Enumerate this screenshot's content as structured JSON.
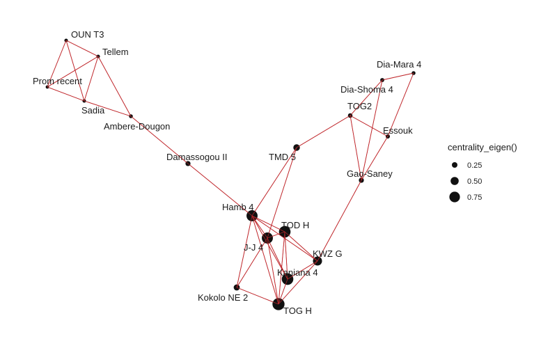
{
  "colors": {
    "edge": "#c0282d",
    "node": "#111111",
    "node_center": "#c0282d",
    "text": "#1a1a1a"
  },
  "nodes": [
    {
      "id": "oun",
      "label": "OUN T3",
      "centrality": 0.05
    },
    {
      "id": "tellem",
      "label": "Tellem",
      "centrality": 0.05
    },
    {
      "id": "prom",
      "label": "Prom recent",
      "centrality": 0.03
    },
    {
      "id": "sadia",
      "label": "Sadia",
      "centrality": 0.05
    },
    {
      "id": "ambere",
      "label": "Ambere-Dougon",
      "centrality": 0.08
    },
    {
      "id": "damassogou",
      "label": "Damassogou II",
      "centrality": 0.2
    },
    {
      "id": "tmd5",
      "label": "TMD 5",
      "centrality": 0.35
    },
    {
      "id": "togII",
      "label": "TOG2",
      "centrality": 0.15
    },
    {
      "id": "diashoma",
      "label": "Dia-Shoma 4",
      "centrality": 0.1
    },
    {
      "id": "diamara",
      "label": "Dia-Mara 4",
      "centrality": 0.08
    },
    {
      "id": "essouk",
      "label": "Essouk",
      "centrality": 0.12
    },
    {
      "id": "gaosaney",
      "label": "Gao-Saney",
      "centrality": 0.2
    },
    {
      "id": "hamb4",
      "label": "Hamb 4",
      "centrality": 0.8
    },
    {
      "id": "todh",
      "label": "TOD H",
      "centrality": 0.85
    },
    {
      "id": "jj4",
      "label": "J-J 4",
      "centrality": 0.8
    },
    {
      "id": "kwzg",
      "label": "KWZ G",
      "centrality": 0.6
    },
    {
      "id": "kaniana",
      "label": "Kaniana 4",
      "centrality": 0.85
    },
    {
      "id": "kokolo",
      "label": "Kokolo NE 2",
      "centrality": 0.3
    },
    {
      "id": "togh",
      "label": "TOG H",
      "centrality": 0.9
    }
  ],
  "edges": [
    [
      "oun",
      "tellem"
    ],
    [
      "oun",
      "prom"
    ],
    [
      "oun",
      "sadia"
    ],
    [
      "tellem",
      "sadia"
    ],
    [
      "tellem",
      "prom"
    ],
    [
      "tellem",
      "ambere"
    ],
    [
      "prom",
      "sadia"
    ],
    [
      "sadia",
      "ambere"
    ],
    [
      "ambere",
      "damassogou"
    ],
    [
      "damassogou",
      "hamb4"
    ],
    [
      "tmd5",
      "hamb4"
    ],
    [
      "tmd5",
      "togII"
    ],
    [
      "tmd5",
      "jj4"
    ],
    [
      "togII",
      "diashoma"
    ],
    [
      "togII",
      "essouk"
    ],
    [
      "togII",
      "gaosaney"
    ],
    [
      "diashoma",
      "diamara"
    ],
    [
      "diashoma",
      "gaosaney"
    ],
    [
      "diamara",
      "essouk"
    ],
    [
      "essouk",
      "gaosaney"
    ],
    [
      "gaosaney",
      "kwzg"
    ],
    [
      "hamb4",
      "todh"
    ],
    [
      "hamb4",
      "jj4"
    ],
    [
      "hamb4",
      "kwzg"
    ],
    [
      "hamb4",
      "kaniana"
    ],
    [
      "hamb4",
      "togh"
    ],
    [
      "hamb4",
      "kokolo"
    ],
    [
      "todh",
      "jj4"
    ],
    [
      "todh",
      "kaniana"
    ],
    [
      "todh",
      "togh"
    ],
    [
      "todh",
      "kwzg"
    ],
    [
      "jj4",
      "kaniana"
    ],
    [
      "jj4",
      "togh"
    ],
    [
      "jj4",
      "kokolo"
    ],
    [
      "kwzg",
      "kaniana"
    ],
    [
      "kwzg",
      "togh"
    ],
    [
      "kaniana",
      "togh"
    ],
    [
      "kokolo",
      "togh"
    ]
  ],
  "legend": {
    "title": "centrality_eigen()",
    "items": [
      {
        "value": 0.25,
        "label": "0.25"
      },
      {
        "value": 0.5,
        "label": "0.50"
      },
      {
        "value": 0.75,
        "label": "0.75"
      }
    ]
  }
}
